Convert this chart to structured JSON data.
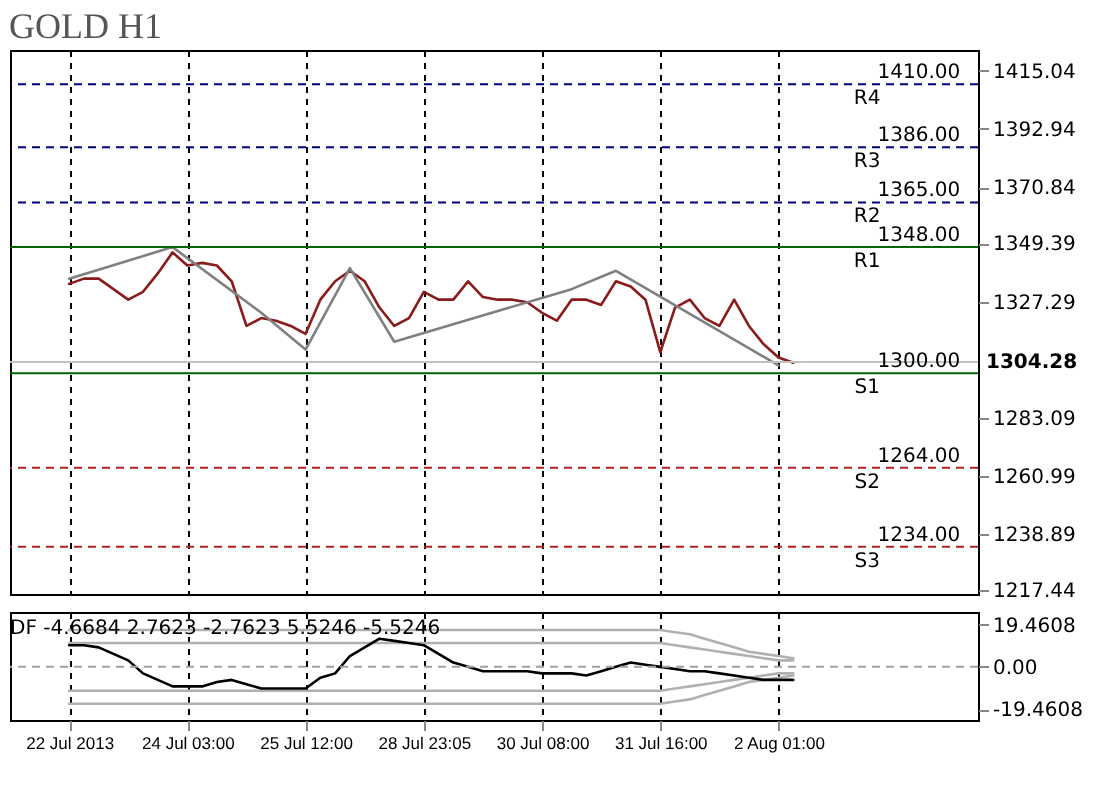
{
  "chart_data": [
    {
      "type": "line",
      "title": "GOLD H1",
      "categories": [
        "22 Jul 2013",
        null,
        null,
        null,
        null,
        null,
        null,
        null,
        "24 Jul 03:00",
        null,
        null,
        null,
        null,
        null,
        null,
        null,
        "25 Jul 12:00",
        null,
        null,
        null,
        null,
        null,
        null,
        null,
        "28 Jul 23:05",
        null,
        null,
        null,
        null,
        null,
        null,
        null,
        "30 Jul 08:00",
        null,
        null,
        null,
        null,
        null,
        null,
        null,
        "31 Jul 16:00",
        null,
        null,
        null,
        null,
        null,
        null,
        null,
        "2 Aug 01:00",
        null,
        null,
        null,
        null,
        null,
        null,
        null,
        null,
        null,
        null,
        null,
        null,
        null
      ],
      "series": [
        {
          "color": "#8b1a1a",
          "values": [
            1334,
            1336,
            1336,
            1332,
            1328,
            1331,
            1338,
            1346,
            1341,
            1342,
            1341,
            1335,
            1318,
            1321,
            1320,
            1318,
            1315,
            1328,
            1335,
            1339,
            1335,
            1325,
            1318,
            1321,
            1331,
            1328,
            1328,
            1335,
            1329,
            1328,
            1328,
            1327,
            1323,
            1320,
            1328,
            1328,
            1326,
            1335,
            1333,
            1328,
            1308,
            1325,
            1328,
            1321,
            1318,
            1328,
            1318,
            1311,
            1306,
            1304,
            null,
            null,
            null,
            null,
            null,
            null,
            null,
            null,
            null,
            null,
            null,
            null
          ]
        },
        {
          "color": "#808080",
          "values": [
            1336,
            null,
            null,
            null,
            null,
            null,
            null,
            1348,
            null,
            null,
            null,
            null,
            null,
            1323,
            null,
            null,
            1309,
            null,
            null,
            1340,
            null,
            null,
            1312,
            null,
            null,
            null,
            null,
            null,
            null,
            null,
            null,
            null,
            null,
            null,
            1332,
            null,
            null,
            1339,
            null,
            null,
            null,
            null,
            null,
            null,
            null,
            null,
            null,
            null,
            1303,
            null,
            null,
            null,
            null,
            null,
            null,
            null,
            null,
            null,
            null,
            null,
            null,
            null
          ]
        }
      ],
      "ylim": [
        1216,
        1423
      ],
      "yticks": [
        1415.04,
        1392.94,
        1370.84,
        1349.39,
        1327.29,
        1283.09,
        1260.99,
        1238.89,
        1217.44
      ],
      "ref_lines": [
        {
          "axis": "y",
          "value": 1410,
          "label": "R4",
          "color": "#000080",
          "line_style": "dashed"
        },
        {
          "axis": "y",
          "value": 1386,
          "label": "R3",
          "color": "#000080",
          "line_style": "dashed"
        },
        {
          "axis": "y",
          "value": 1365,
          "label": "R2",
          "color": "#000080",
          "line_style": "dashed"
        },
        {
          "axis": "y",
          "value": 1348,
          "label": "R1",
          "color": "#006400",
          "line_style": "solid"
        },
        {
          "axis": "y",
          "value": 1300,
          "label": "S1",
          "color": "#006400",
          "line_style": "solid"
        },
        {
          "axis": "y",
          "value": 1264,
          "label": "S2",
          "color": "#b22222",
          "line_style": "dashed"
        },
        {
          "axis": "y",
          "value": 1234,
          "label": "S3",
          "color": "#b22222",
          "line_style": "dashed"
        },
        {
          "axis": "y",
          "value": 1304.28,
          "label": "1304.28",
          "color": "#c0c0c0",
          "line_style": "solid"
        }
      ],
      "annotations": [
        {
          "text": "1410.00",
          "y": 1410
        },
        {
          "text": "1386.00",
          "y": 1386
        },
        {
          "text": "1365.00",
          "y": 1365
        },
        {
          "text": "1348.00",
          "y": 1348
        },
        {
          "text": "1300.00",
          "y": 1300
        },
        {
          "text": "1264.00",
          "y": 1264
        },
        {
          "text": "1234.00",
          "y": 1234
        }
      ],
      "grid": "x",
      "tick_labels": "y"
    },
    {
      "type": "line",
      "categories": [
        "22 Jul 2013",
        null,
        null,
        null,
        null,
        null,
        null,
        null,
        "24 Jul 03:00",
        null,
        null,
        null,
        null,
        null,
        null,
        null,
        "25 Jul 12:00",
        null,
        null,
        null,
        null,
        null,
        null,
        null,
        "28 Jul 23:05",
        null,
        null,
        null,
        null,
        null,
        null,
        null,
        "30 Jul 08:00",
        null,
        null,
        null,
        null,
        null,
        null,
        null,
        "31 Jul 16:00",
        null,
        null,
        null,
        null,
        null,
        null,
        null,
        "2 Aug 01:00",
        null,
        null,
        null,
        null,
        null,
        null,
        null,
        null,
        null,
        null,
        null,
        null,
        null
      ],
      "series": [
        {
          "color": "#b0b0b0",
          "values": [
            17,
            17,
            17,
            17,
            17,
            17,
            17,
            17,
            17,
            17,
            17,
            17,
            17,
            17,
            17,
            17,
            17,
            17,
            17,
            17,
            17,
            17,
            17,
            17,
            17,
            17,
            17,
            17,
            17,
            17,
            17,
            17,
            17,
            17,
            17,
            17,
            17,
            17,
            17,
            17,
            17,
            16,
            15,
            13,
            11,
            9,
            7,
            6,
            5,
            4,
            null,
            null,
            null,
            null,
            null,
            null,
            null,
            null,
            null,
            null,
            null,
            null
          ]
        },
        {
          "color": "#b0b0b0",
          "values": [
            11,
            11,
            11,
            11,
            11,
            11,
            11,
            11,
            11,
            11,
            11,
            11,
            11,
            11,
            11,
            11,
            11,
            11,
            11,
            11,
            11,
            11,
            11,
            11,
            11,
            11,
            11,
            11,
            11,
            11,
            11,
            11,
            11,
            11,
            11,
            11,
            11,
            11,
            11,
            11,
            11,
            10,
            9,
            8,
            7,
            6,
            5,
            4,
            3,
            3,
            null,
            null,
            null,
            null,
            null,
            null,
            null,
            null,
            null,
            null,
            null,
            null
          ]
        },
        {
          "color": "#b0b0b0",
          "values": [
            -11,
            -11,
            -11,
            -11,
            -11,
            -11,
            -11,
            -11,
            -11,
            -11,
            -11,
            -11,
            -11,
            -11,
            -11,
            -11,
            -11,
            -11,
            -11,
            -11,
            -11,
            -11,
            -11,
            -11,
            -11,
            -11,
            -11,
            -11,
            -11,
            -11,
            -11,
            -11,
            -11,
            -11,
            -11,
            -11,
            -11,
            -11,
            -11,
            -11,
            -11,
            -10,
            -9,
            -8,
            -7,
            -6,
            -5,
            -4,
            -3,
            -3,
            null,
            null,
            null,
            null,
            null,
            null,
            null,
            null,
            null,
            null,
            null,
            null
          ]
        },
        {
          "color": "#b0b0b0",
          "values": [
            -17,
            -17,
            -17,
            -17,
            -17,
            -17,
            -17,
            -17,
            -17,
            -17,
            -17,
            -17,
            -17,
            -17,
            -17,
            -17,
            -17,
            -17,
            -17,
            -17,
            -17,
            -17,
            -17,
            -17,
            -17,
            -17,
            -17,
            -17,
            -17,
            -17,
            -17,
            -17,
            -17,
            -17,
            -17,
            -17,
            -17,
            -17,
            -17,
            -17,
            -17,
            -16,
            -15,
            -13,
            -11,
            -9,
            -7,
            -6,
            -5,
            -4,
            null,
            null,
            null,
            null,
            null,
            null,
            null,
            null,
            null,
            null,
            null,
            null
          ]
        },
        {
          "color": "#000000",
          "values": [
            10,
            10,
            9,
            6,
            3,
            -3,
            -6,
            -9,
            -9,
            -9,
            -7,
            -6,
            -8,
            -10,
            -10,
            -10,
            -10,
            -5,
            -3,
            5,
            9,
            13,
            12,
            11,
            10,
            6,
            2,
            0,
            -2,
            -2,
            -2,
            -2,
            -3,
            -3,
            -3,
            -4,
            -2,
            0,
            2,
            1,
            0,
            -1,
            -2,
            -2,
            -3,
            -4,
            -5,
            -6,
            -6,
            -6,
            null,
            null,
            null,
            null,
            null,
            null,
            null,
            null,
            null,
            null,
            null,
            null
          ]
        }
      ],
      "ylim": [
        -24.5,
        25.3
      ],
      "yticks": [
        19.4608,
        {
          "value": 0,
          "label": "0.00"
        },
        -19.4608
      ],
      "ref_lines": [
        {
          "axis": "y",
          "value": 0,
          "color": "#a0a0a0",
          "line_style": "dashed"
        }
      ],
      "annotations": [
        "DF -4.6684 2.7623 -2.7623 5.5246 -5.5246"
      ],
      "grid": "x"
    }
  ]
}
